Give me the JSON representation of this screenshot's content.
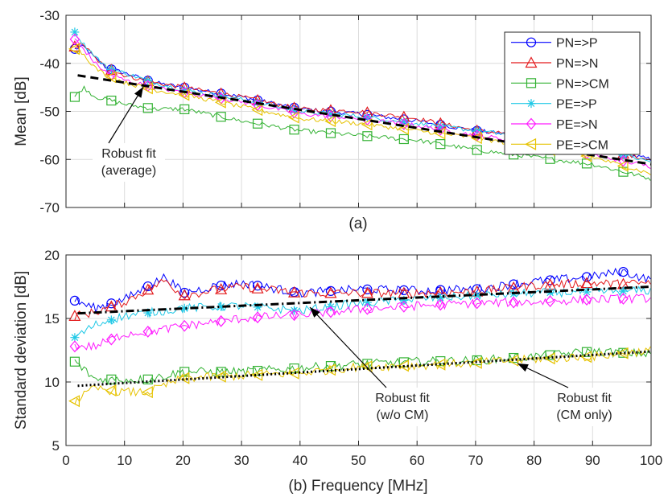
{
  "chart_data": [
    {
      "type": "line",
      "panel_label": "(a)",
      "ylabel": "Mean [dB]",
      "xlabel": "",
      "xlim": [
        0,
        100
      ],
      "ylim": [
        -70,
        -30
      ],
      "x_ticks": [
        0,
        10,
        20,
        30,
        40,
        50,
        60,
        70,
        80,
        90,
        100
      ],
      "y_ticks": [
        -30,
        -40,
        -50,
        -60,
        -70
      ],
      "grid": true,
      "legend_position": "top-right",
      "series": [
        {
          "name": "PN=>P",
          "color": "#0000ff",
          "marker": "circle",
          "x": [
            1.5,
            3,
            5,
            7,
            10,
            15,
            20,
            30,
            40,
            50,
            60,
            70,
            80,
            90,
            100
          ],
          "y": [
            -37,
            -36.5,
            -39,
            -41,
            -42,
            -44,
            -45,
            -47,
            -49.5,
            -50.5,
            -52,
            -54,
            -55.5,
            -57.5,
            -60
          ]
        },
        {
          "name": "PN=>N",
          "color": "#e31a1c",
          "marker": "triangle",
          "x": [
            1.5,
            3,
            5,
            7,
            10,
            15,
            20,
            30,
            40,
            50,
            60,
            70,
            80,
            90,
            100
          ],
          "y": [
            -36.5,
            -36,
            -39,
            -41,
            -42.5,
            -44,
            -45,
            -47,
            -49.5,
            -50,
            -51.5,
            -54,
            -55,
            -57.5,
            -60
          ]
        },
        {
          "name": "PN=>CM",
          "color": "#33b233",
          "marker": "square",
          "x": [
            1.5,
            3,
            5,
            7,
            10,
            15,
            20,
            30,
            40,
            50,
            60,
            70,
            80,
            90,
            100
          ],
          "y": [
            -47,
            -45,
            -47,
            -47.5,
            -48.5,
            -49.5,
            -49.5,
            -52,
            -54,
            -55,
            -56,
            -58,
            -59.5,
            -61,
            -64
          ]
        },
        {
          "name": "PE=>P",
          "color": "#1fc8e6",
          "marker": "asterisk",
          "x": [
            1.5,
            3,
            5,
            7,
            10,
            15,
            20,
            30,
            40,
            50,
            60,
            70,
            80,
            90,
            100
          ],
          "y": [
            -33.5,
            -36,
            -38.5,
            -41,
            -42,
            -44,
            -45.5,
            -47.5,
            -50,
            -51,
            -52.5,
            -54,
            -55.5,
            -57.5,
            -60.5
          ]
        },
        {
          "name": "PE=>N",
          "color": "#ff1aff",
          "marker": "diamond",
          "x": [
            1.5,
            3,
            5,
            7,
            10,
            15,
            20,
            30,
            40,
            50,
            60,
            70,
            80,
            90,
            100
          ],
          "y": [
            -35,
            -37,
            -40,
            -42,
            -43.5,
            -45,
            -46,
            -48,
            -50.5,
            -51.5,
            -53,
            -55,
            -56.5,
            -59,
            -61.5
          ]
        },
        {
          "name": "PE=>CM",
          "color": "#e6c200",
          "marker": "triangle-left",
          "x": [
            1.5,
            3,
            5,
            7,
            10,
            15,
            20,
            30,
            40,
            50,
            60,
            70,
            80,
            90,
            100
          ],
          "y": [
            -37,
            -38,
            -41,
            -42.5,
            -44,
            -45.5,
            -46.5,
            -49,
            -51.5,
            -52.5,
            -54,
            -55.5,
            -57.5,
            -59.5,
            -63
          ]
        }
      ],
      "fits": [
        {
          "name": "Robust fit (average)",
          "style": "dashed",
          "x": [
            2,
            100
          ],
          "y": [
            -42.5,
            -61
          ]
        }
      ],
      "annotations": [
        {
          "lines": [
            "Robust fit",
            "(average)"
          ]
        }
      ]
    },
    {
      "type": "line",
      "panel_label": "(b) Frequency [MHz]",
      "ylabel": "Standard deviation [dB]",
      "xlabel": "Frequency [MHz]",
      "xlim": [
        0,
        100
      ],
      "ylim": [
        5,
        20
      ],
      "x_ticks": [
        0,
        10,
        20,
        30,
        40,
        50,
        60,
        70,
        80,
        90,
        100
      ],
      "y_ticks": [
        5,
        10,
        15,
        20
      ],
      "grid": true,
      "series": [
        {
          "name": "PN=>P",
          "color": "#0000ff",
          "marker": "circle",
          "x": [
            1.5,
            5,
            10,
            17,
            20,
            25,
            30,
            40,
            50,
            60,
            70,
            80,
            90,
            95,
            100
          ],
          "y": [
            16.4,
            15.8,
            16.5,
            18.3,
            17,
            17.5,
            17.8,
            17,
            17.3,
            17.2,
            17.3,
            17.9,
            18.3,
            18.7,
            18
          ]
        },
        {
          "name": "PN=>N",
          "color": "#e31a1c",
          "marker": "triangle",
          "x": [
            1.5,
            5,
            10,
            17,
            20,
            25,
            30,
            40,
            50,
            60,
            70,
            80,
            90,
            95,
            100
          ],
          "y": [
            15.2,
            15.5,
            16.3,
            18,
            16.8,
            17.2,
            17.5,
            17,
            17,
            17,
            17.1,
            17.6,
            17.8,
            17.7,
            17.8
          ]
        },
        {
          "name": "PN=>CM",
          "color": "#33b233",
          "marker": "square",
          "x": [
            1.5,
            5,
            10,
            14,
            20,
            30,
            40,
            50,
            60,
            70,
            80,
            90,
            100
          ],
          "y": [
            11.6,
            10.2,
            10.2,
            10.2,
            10.8,
            10.8,
            11.1,
            11.4,
            11.6,
            11.7,
            12,
            12.4,
            12.2
          ]
        },
        {
          "name": "PE=>P",
          "color": "#1fc8e6",
          "marker": "asterisk",
          "x": [
            1.5,
            5,
            10,
            15,
            20,
            30,
            40,
            50,
            60,
            70,
            80,
            90,
            100
          ],
          "y": [
            13.5,
            14.5,
            15.2,
            15.5,
            15.8,
            16,
            15.6,
            16.2,
            16.5,
            16.8,
            17,
            17.1,
            17.2
          ]
        },
        {
          "name": "PE=>N",
          "color": "#ff1aff",
          "marker": "diamond",
          "x": [
            1.5,
            5,
            10,
            15,
            20,
            30,
            40,
            50,
            60,
            70,
            80,
            90,
            100
          ],
          "y": [
            12.8,
            12.8,
            13.8,
            14,
            14.4,
            15,
            15.3,
            15.7,
            16,
            16.2,
            16.3,
            16.5,
            16.6
          ]
        },
        {
          "name": "PE=>CM",
          "color": "#e6c200",
          "marker": "triangle-left",
          "x": [
            1.5,
            5,
            10,
            14,
            20,
            30,
            40,
            50,
            60,
            70,
            80,
            90,
            100
          ],
          "y": [
            8.5,
            9.5,
            9.2,
            9.2,
            10.3,
            10.5,
            10.7,
            11.2,
            11.3,
            11.5,
            11.8,
            12,
            12.5
          ]
        }
      ],
      "fits": [
        {
          "name": "Robust fit (w/o CM)",
          "style": "dashdot",
          "x": [
            2,
            100
          ],
          "y": [
            15.4,
            17.5
          ]
        },
        {
          "name": "Robust fit (CM only)",
          "style": "dotted",
          "x": [
            2,
            100
          ],
          "y": [
            9.7,
            12.4
          ]
        }
      ],
      "annotations": [
        {
          "lines": [
            "Robust fit",
            "(w/o CM)"
          ]
        },
        {
          "lines": [
            "Robust fit",
            "(CM only)"
          ]
        }
      ]
    }
  ]
}
